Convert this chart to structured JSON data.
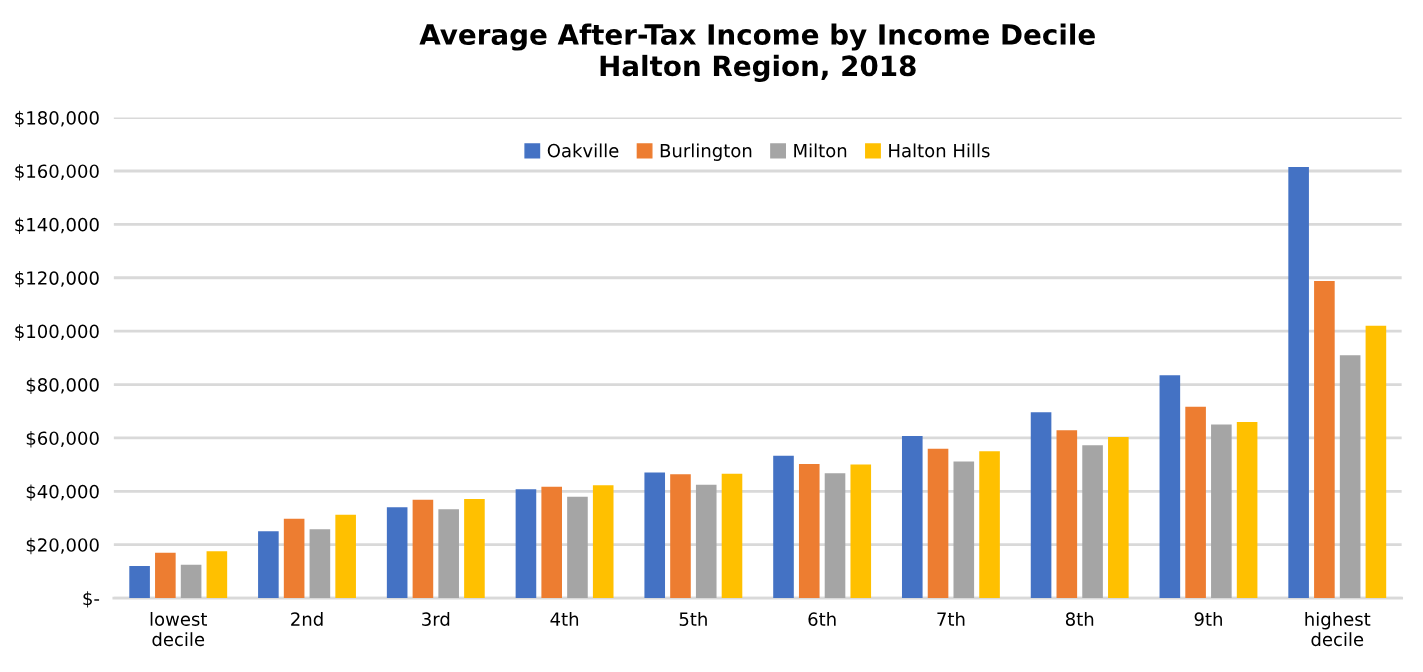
{
  "chart_data": {
    "type": "bar",
    "title": "Average After-Tax Income by Income Decile\nHalton Region, 2018",
    "categories": [
      "lowest\ndecile",
      "2nd",
      "3rd",
      "4th",
      "5th",
      "6th",
      "7th",
      "8th",
      "9th",
      "highest\ndecile"
    ],
    "series": [
      {
        "name": "Oakville",
        "color": "#4472c4",
        "values": [
          12000,
          25000,
          34000,
          40800,
          47000,
          53300,
          60700,
          69600,
          83500,
          161500
        ]
      },
      {
        "name": "Burlington",
        "color": "#ed7d31",
        "values": [
          17000,
          29700,
          36800,
          41700,
          46400,
          50200,
          55900,
          62900,
          71700,
          118800
        ]
      },
      {
        "name": "Milton",
        "color": "#a5a5a5",
        "values": [
          12500,
          25800,
          33300,
          38000,
          42500,
          46800,
          51200,
          57300,
          65000,
          91000
        ]
      },
      {
        "name": "Halton Hills",
        "color": "#ffc000",
        "values": [
          17500,
          31200,
          37100,
          42300,
          46600,
          50000,
          55000,
          60300,
          66000,
          102000
        ]
      }
    ],
    "ylim": [
      0,
      180000
    ],
    "yticks": [
      {
        "value": 0,
        "label": "$-"
      },
      {
        "value": 20000,
        "label": "$20,000"
      },
      {
        "value": 40000,
        "label": "$40,000"
      },
      {
        "value": 60000,
        "label": "$60,000"
      },
      {
        "value": 80000,
        "label": "$80,000"
      },
      {
        "value": 100000,
        "label": "$100,000"
      },
      {
        "value": 120000,
        "label": "$120,000"
      },
      {
        "value": 140000,
        "label": "$140,000"
      },
      {
        "value": 160000,
        "label": "$160,000"
      },
      {
        "value": 180000,
        "label": "$180,000"
      }
    ],
    "grid": "y",
    "legend": "top"
  }
}
